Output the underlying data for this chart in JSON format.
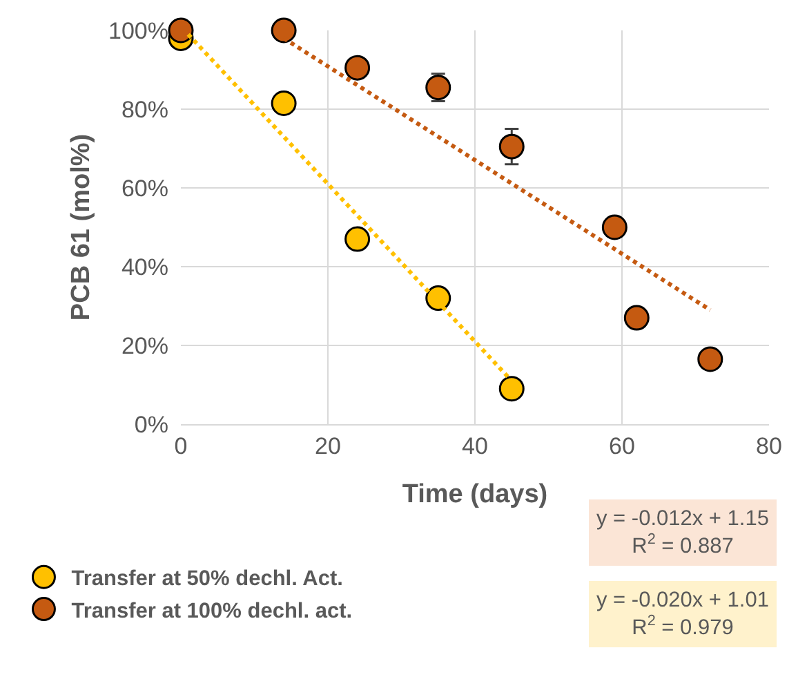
{
  "chart_data": {
    "type": "scatter",
    "xlabel": "Time (days)",
    "ylabel": "PCB 61 (mol%)",
    "xlim": [
      0,
      80
    ],
    "xticks": [
      0,
      20,
      40,
      60,
      80
    ],
    "ylim": [
      0,
      1
    ],
    "yticks": [
      {
        "value": 0,
        "label": "0%"
      },
      {
        "value": 0.2,
        "label": "20%"
      },
      {
        "value": 0.4,
        "label": "40%"
      },
      {
        "value": 0.6,
        "label": "60%"
      },
      {
        "value": 0.8,
        "label": "80%"
      },
      {
        "value": 1,
        "label": "100%"
      }
    ],
    "grid": true,
    "legend": "bottom left",
    "marker": "circle",
    "series": [
      {
        "name": "Transfer at 50% dechl. Act.",
        "color": "#ffc000",
        "x": [
          0,
          14,
          24,
          35,
          45
        ],
        "values": [
          0.98,
          0.815,
          0.47,
          0.32,
          0.09
        ]
      },
      {
        "name": "Transfer at 100% dechl. act.",
        "color": "#c55a11",
        "x": [
          0,
          14,
          24,
          35,
          45,
          59,
          62,
          72
        ],
        "values": [
          1.0,
          1.0,
          0.905,
          0.855,
          0.705,
          0.5,
          0.27,
          0.165
        ],
        "errors": [
          null,
          null,
          null,
          0.035,
          0.045,
          null,
          null,
          null
        ]
      },
      {
        "type": "line",
        "color": "#ffc000",
        "line_style": "dotted",
        "marker": "none",
        "x": [
          1,
          45
        ],
        "values": [
          0.99,
          0.11
        ]
      },
      {
        "type": "line",
        "color": "#c55a11",
        "line_style": "dotted",
        "marker": "none",
        "x": [
          14,
          72
        ],
        "values": [
          0.98,
          0.29
        ]
      }
    ],
    "annotations": [
      "y = -0.012x + 1.15\nR$^{2}$ = 0.887",
      "y = -0.020x + 1.01\nR$^{2}$ = 0.979"
    ]
  }
}
